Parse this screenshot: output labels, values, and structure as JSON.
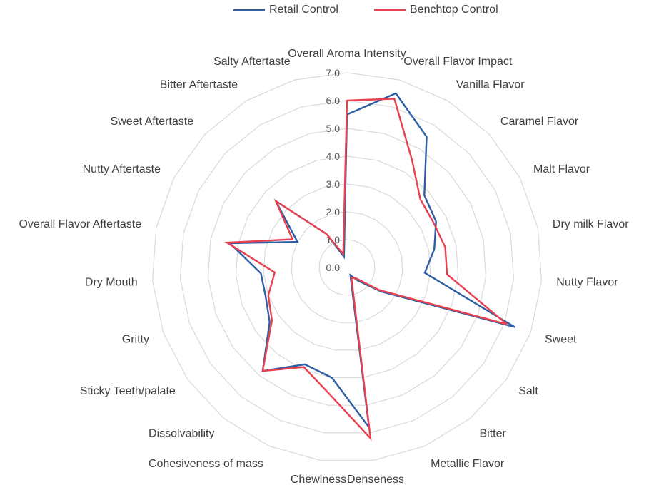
{
  "chart_data": {
    "type": "radar",
    "title": "",
    "legend_position": "top",
    "grid": true,
    "rlim": [
      0,
      7
    ],
    "r_ticks": [
      "0.0",
      "1.0",
      "2.0",
      "3.0",
      "4.0",
      "5.0",
      "6.0",
      "7.0"
    ],
    "categories": [
      "Overall Aroma Intensity",
      "Overall Flavor Impact",
      "Vanilla Flavor",
      "Caramel Flavor",
      "Malt Flavor",
      "Dry milk Flavor",
      "Nutty Flavor",
      "Sweet",
      "Salt",
      "Bitter",
      "Metallic Flavor",
      "Denseness",
      "Chewiness",
      "Cohesiveness of mass",
      "Dissolvability",
      "Sticky Teeth/palate",
      "Gritty",
      "Dry Mouth",
      "Overall Flavor Aftertaste",
      "Nutty Aftertaste",
      "Sweet Aftertaste",
      "Bitter Aftertaste",
      "Salty Aftertaste"
    ],
    "series": [
      {
        "name": "Retail Control",
        "color": "#2e5fa6",
        "values": [
          5.5,
          6.5,
          5.5,
          3.8,
          3.6,
          3.2,
          2.8,
          6.4,
          1.5,
          0.6,
          0.3,
          5.8,
          4.0,
          3.8,
          4.8,
          3.4,
          3.1,
          3.1,
          4.3,
          2.0,
          3.5,
          1.4,
          0.4
        ]
      },
      {
        "name": "Benchtop Control",
        "color": "#e8404e",
        "values": [
          6.0,
          6.3,
          4.5,
          3.6,
          3.5,
          3.6,
          3.6,
          6.1,
          1.4,
          0.5,
          0.4,
          6.2,
          4.6,
          3.9,
          4.8,
          3.3,
          3.0,
          2.6,
          4.4,
          2.2,
          3.5,
          1.4,
          0.5
        ]
      }
    ]
  }
}
